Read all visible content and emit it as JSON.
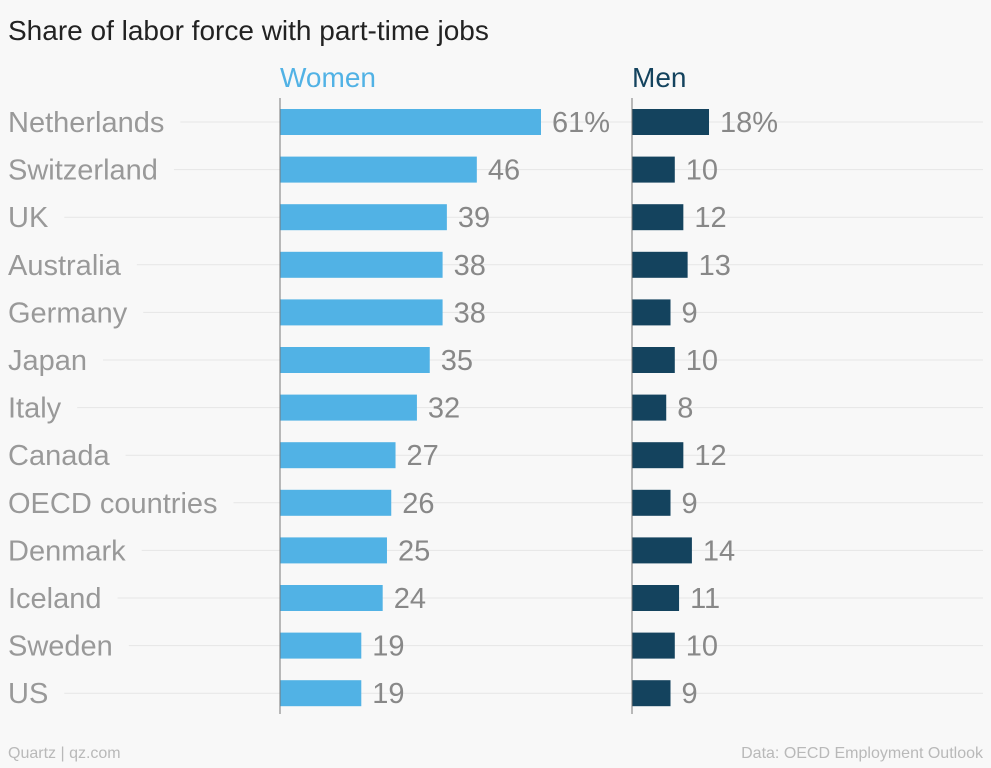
{
  "chart_data": {
    "type": "bar",
    "orientation": "horizontal",
    "title": "Share of labor force with part-time jobs",
    "categories": [
      "Netherlands",
      "Switzerland",
      "UK",
      "Australia",
      "Germany",
      "Japan",
      "Italy",
      "Canada",
      "OECD countries",
      "Denmark",
      "Iceland",
      "Sweden",
      "US"
    ],
    "series": [
      {
        "name": "Women",
        "values": [
          61,
          46,
          39,
          38,
          38,
          35,
          32,
          27,
          26,
          25,
          24,
          19,
          19
        ],
        "color": "#51b2e5"
      },
      {
        "name": "Men",
        "values": [
          18,
          10,
          12,
          13,
          9,
          10,
          8,
          12,
          9,
          14,
          11,
          10,
          9
        ],
        "color": "#14435e"
      }
    ],
    "first_label_suffix": "%",
    "xlim": [
      0,
      70
    ]
  },
  "footer": {
    "source_left": "Quartz | qz.com",
    "source_right": "Data: OECD Employment Outlook"
  },
  "colors": {
    "title": "#222222",
    "category_label": "#999999",
    "value_label": "#888888",
    "gridline": "#e6e6e6",
    "axis": "#777777"
  }
}
